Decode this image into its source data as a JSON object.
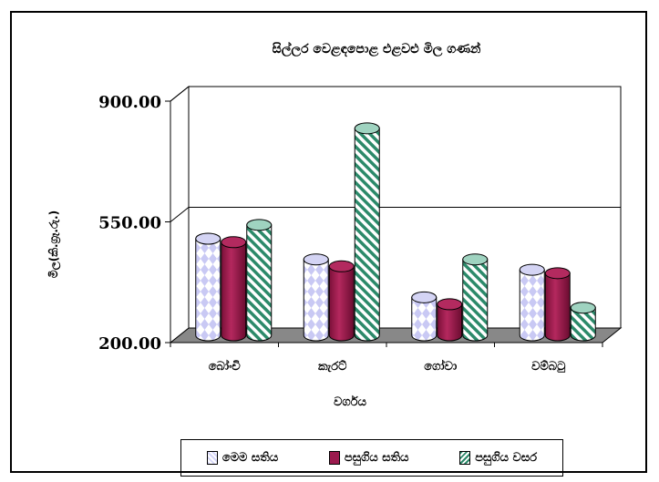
{
  "chart_data": {
    "type": "bar",
    "title": "සිල්ලර වෙළඳපොළ එළවළු මිල ගණන්",
    "xlabel": "වර්ගය",
    "ylabel": "මිල(කි.ග්‍රෑ.රු.)",
    "categories": [
      "බෝංචි",
      "කැරට්",
      "ගෝවා",
      "වම්බටු"
    ],
    "ylim": [
      200,
      900
    ],
    "yticks": [
      200,
      550,
      900
    ],
    "ytick_labels": [
      "200.00",
      "550.00",
      "900.00"
    ],
    "series": [
      {
        "name": "මෙම සතිය",
        "values": [
          480,
          420,
          310,
          390
        ]
      },
      {
        "name": "පසුගිය සතිය",
        "values": [
          470,
          400,
          290,
          380
        ]
      },
      {
        "name": "පසුගිය වසර",
        "values": [
          520,
          800,
          420,
          280
        ]
      }
    ],
    "legend_position": "bottom",
    "grid": true
  }
}
